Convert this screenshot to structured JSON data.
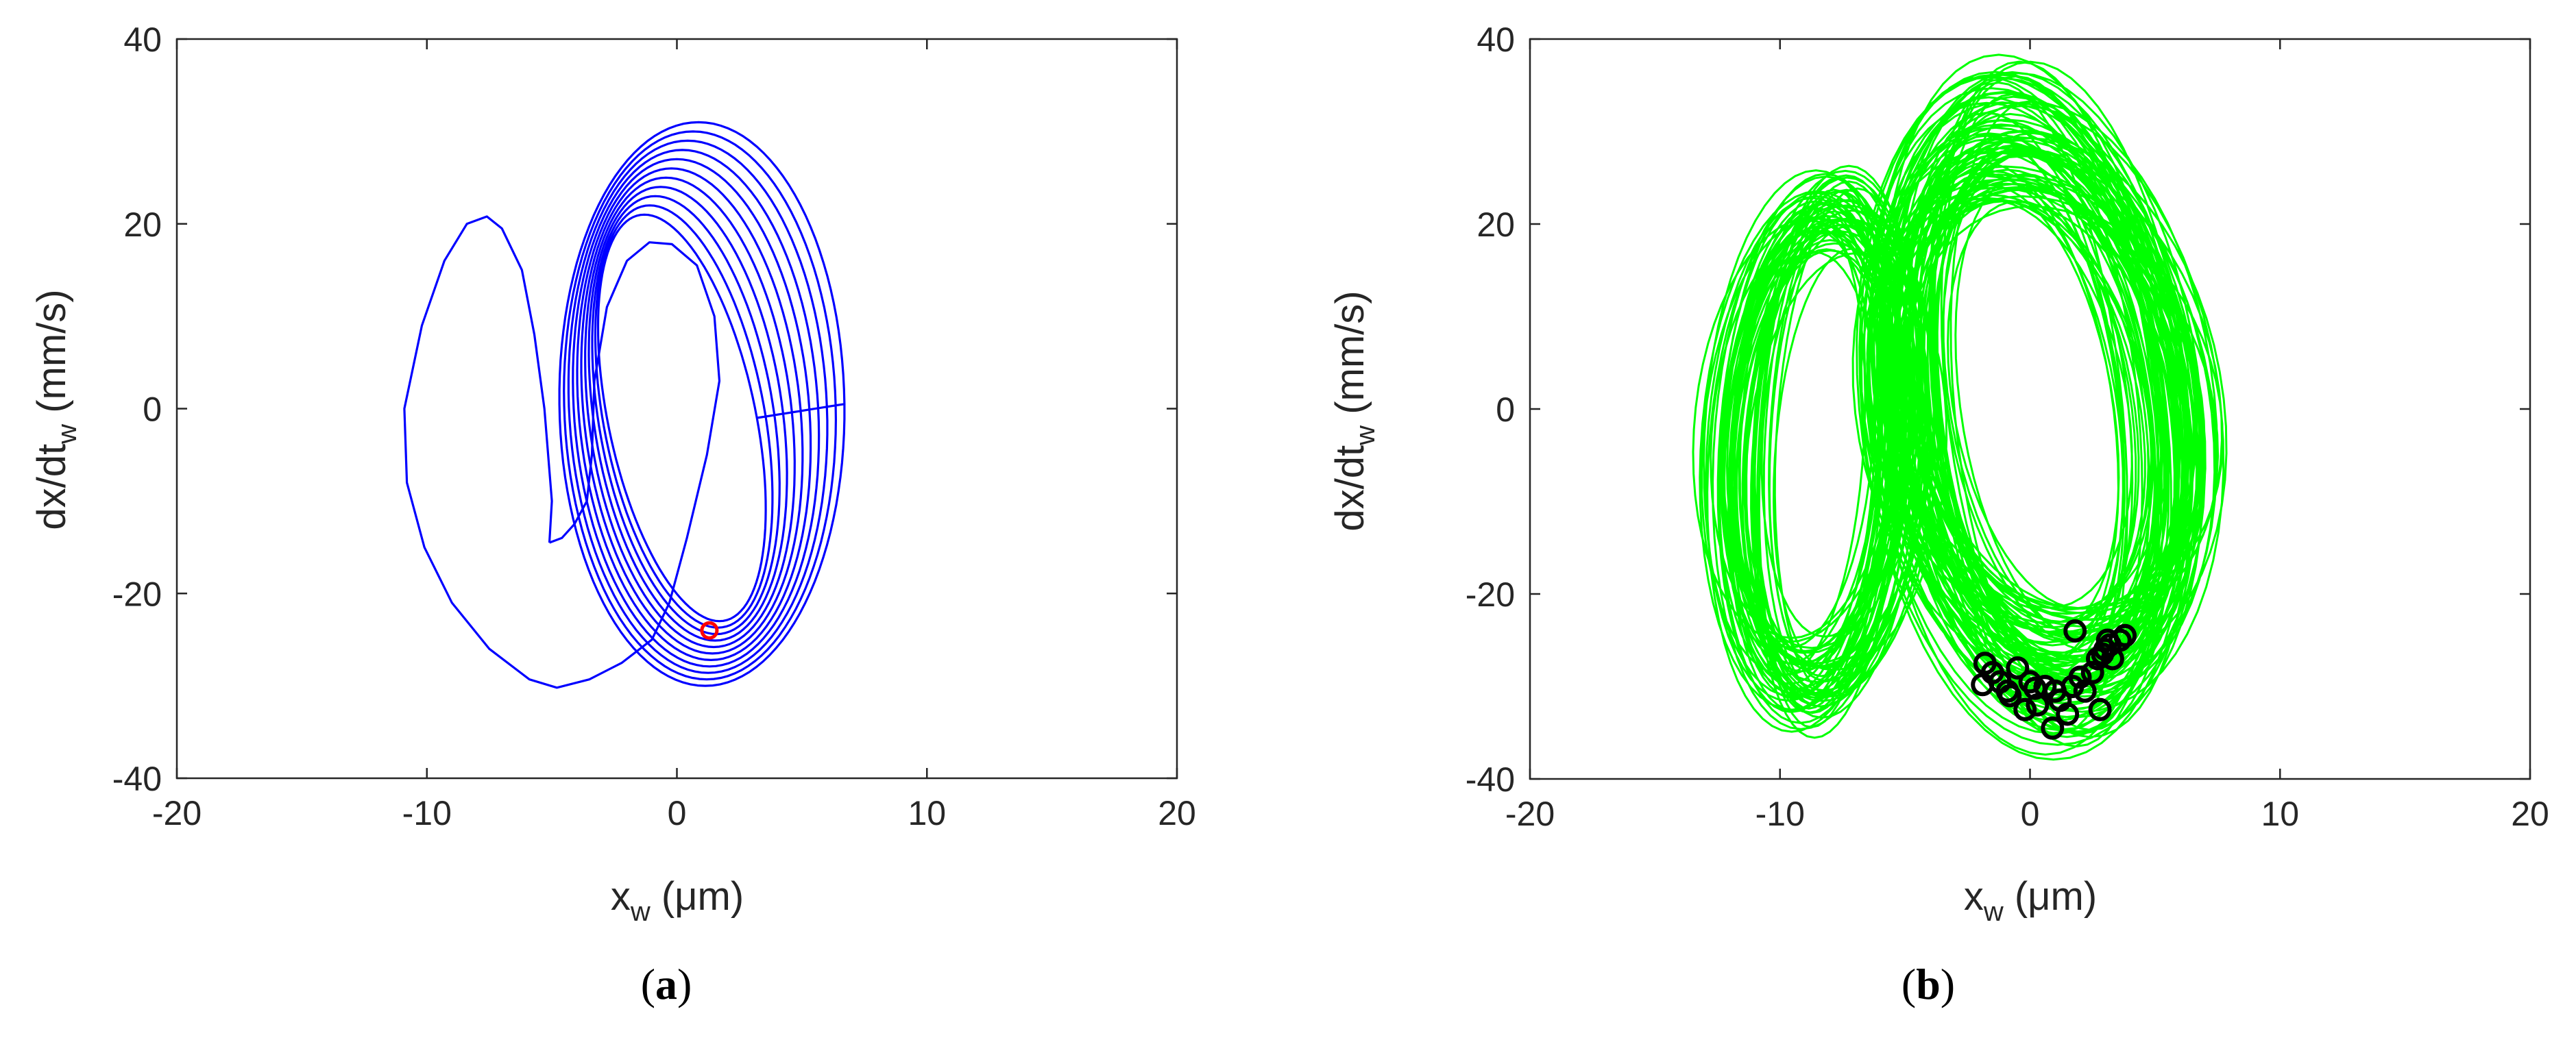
{
  "chart_data": [
    {
      "id": "a",
      "type": "line",
      "caption_letter": "a",
      "xlabel_main": "x",
      "xlabel_sub": "w",
      "xlabel_unit": " (μm)",
      "ylabel_main": "dx/dt",
      "ylabel_sub": "w",
      "ylabel_unit": " (mm/s)",
      "xlim": [
        -20,
        20
      ],
      "ylim": [
        -40,
        40
      ],
      "xticks": [
        -20,
        -10,
        0,
        10,
        20
      ],
      "yticks": [
        -40,
        -20,
        0,
        20,
        40
      ],
      "grid": false,
      "series": [
        {
          "kind": "trajectory",
          "color": "#0000ff",
          "description_points": "spiral attractor"
        },
        {
          "kind": "marker",
          "color": "#ff0000",
          "points": [
            [
              1.3,
              -24
            ]
          ]
        }
      ]
    },
    {
      "id": "b",
      "type": "line",
      "caption_letter": "b",
      "xlabel_main": "x",
      "xlabel_sub": "w",
      "xlabel_unit": " (μm)",
      "ylabel_main": "dx/dt",
      "ylabel_sub": "w",
      "ylabel_unit": " (mm/s)",
      "xlim": [
        -20,
        20
      ],
      "ylim": [
        -40,
        40
      ],
      "xticks": [
        -20,
        -10,
        0,
        10,
        20
      ],
      "yticks": [
        -40,
        -20,
        0,
        20,
        40
      ],
      "grid": false,
      "series": [
        {
          "kind": "trajectory",
          "color": "#00ff00"
        },
        {
          "kind": "marker",
          "color": "#000000",
          "points": [
            [
              -1.8,
              -27.5
            ],
            [
              -1.5,
              -28.5
            ],
            [
              -1.2,
              -29.5
            ],
            [
              -1.9,
              -29.8
            ],
            [
              -0.8,
              -31
            ],
            [
              -0.5,
              -28
            ],
            [
              0,
              -29.5
            ],
            [
              0.3,
              -32
            ],
            [
              -0.2,
              -32.5
            ],
            [
              0.6,
              -30
            ],
            [
              0.9,
              -34.5
            ],
            [
              1.2,
              -31.5
            ],
            [
              1.5,
              -33
            ],
            [
              1.7,
              -30
            ],
            [
              1.8,
              -24
            ],
            [
              2.2,
              -30.5
            ],
            [
              2.5,
              -28.5
            ],
            [
              2.8,
              -32.5
            ],
            [
              2.7,
              -27
            ],
            [
              3.0,
              -26
            ],
            [
              3.2,
              -25.5
            ],
            [
              3.3,
              -27
            ],
            [
              3.6,
              -25
            ],
            [
              3.8,
              -24.5
            ],
            [
              3.1,
              -25
            ],
            [
              2.9,
              -26.5
            ],
            [
              0.2,
              -30.2
            ],
            [
              -0.9,
              -30.5
            ],
            [
              1.0,
              -30.5
            ],
            [
              2.0,
              -29
            ]
          ]
        }
      ]
    }
  ]
}
